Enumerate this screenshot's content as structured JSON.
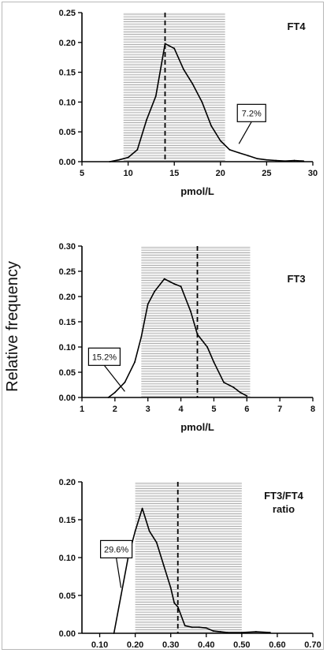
{
  "ylabel": "Relative frequency",
  "chart_data": [
    {
      "type": "line",
      "title": "FT4",
      "xlabel": "pmol/L",
      "xlim": [
        5,
        30
      ],
      "ylim": [
        0,
        0.25
      ],
      "xticks": [
        5,
        10,
        15,
        20,
        25,
        30
      ],
      "yticks": [
        0.0,
        0.05,
        0.1,
        0.15,
        0.2,
        0.25
      ],
      "xtick_labels": [
        "5",
        "10",
        "15",
        "20",
        "25",
        "30"
      ],
      "ytick_labels": [
        "0.00",
        "0.05",
        "0.10",
        "0.15",
        "0.20",
        "0.25"
      ],
      "reference_range": [
        9.5,
        20.5
      ],
      "median_line": 14,
      "annotation": {
        "text": "7.2%",
        "x": 22,
        "y": 0.03
      },
      "x": [
        8,
        9,
        10,
        11,
        12,
        13,
        14,
        15,
        16,
        17,
        18,
        19,
        20,
        21,
        22,
        23,
        24,
        25,
        26,
        27,
        28,
        29
      ],
      "y": [
        0,
        0.003,
        0.007,
        0.02,
        0.07,
        0.11,
        0.198,
        0.19,
        0.155,
        0.13,
        0.1,
        0.06,
        0.035,
        0.02,
        0.015,
        0.01,
        0.005,
        0.003,
        0.002,
        0.001,
        0.002,
        0.001
      ]
    },
    {
      "type": "line",
      "title": "FT3",
      "xlabel": "pmol/L",
      "xlim": [
        1,
        8
      ],
      "ylim": [
        0,
        0.3
      ],
      "xticks": [
        1,
        2,
        3,
        4,
        5,
        6,
        7,
        8
      ],
      "yticks": [
        0.0,
        0.05,
        0.1,
        0.15,
        0.2,
        0.25,
        0.3
      ],
      "xtick_labels": [
        "1",
        "2",
        "3",
        "4",
        "5",
        "6",
        "7",
        "8"
      ],
      "ytick_labels": [
        "0.00",
        "0.05",
        "0.10",
        "0.15",
        "0.20",
        "0.25",
        "0.30"
      ],
      "reference_range": [
        2.8,
        6.1
      ],
      "median_line": 4.5,
      "annotation": {
        "text": "15.2%",
        "x": 2.3,
        "y": 0.012
      },
      "x": [
        1.8,
        2.0,
        2.3,
        2.6,
        2.8,
        3.0,
        3.2,
        3.5,
        3.8,
        4.0,
        4.3,
        4.5,
        4.8,
        5.0,
        5.3,
        5.6,
        5.8,
        6.0
      ],
      "y": [
        0,
        0.01,
        0.03,
        0.07,
        0.12,
        0.185,
        0.21,
        0.235,
        0.225,
        0.22,
        0.17,
        0.125,
        0.1,
        0.07,
        0.03,
        0.02,
        0.01,
        0.003
      ]
    },
    {
      "type": "line",
      "title": "FT3/FT4",
      "subtitle": "ratio",
      "xlabel": "",
      "xlim": [
        0.05,
        0.7
      ],
      "ylim": [
        0,
        0.2
      ],
      "xticks": [
        0.1,
        0.2,
        0.3,
        0.4,
        0.5,
        0.6,
        0.7
      ],
      "yticks": [
        0.0,
        0.05,
        0.1,
        0.15,
        0.2
      ],
      "xtick_labels": [
        "0.10",
        "0.20",
        "0.30",
        "0.40",
        "0.50",
        "0.60",
        "0.70"
      ],
      "ytick_labels": [
        "0.00",
        "0.05",
        "0.10",
        "0.15",
        "0.20"
      ],
      "reference_range": [
        0.2,
        0.5
      ],
      "median_line": 0.32,
      "annotation": {
        "text": "29.6%",
        "x": 0.16,
        "y": 0.06
      },
      "x": [
        0.14,
        0.16,
        0.18,
        0.2,
        0.22,
        0.24,
        0.26,
        0.28,
        0.3,
        0.31,
        0.32,
        0.34,
        0.36,
        0.38,
        0.4,
        0.42,
        0.44,
        0.46,
        0.5,
        0.54,
        0.58
      ],
      "y": [
        0,
        0.05,
        0.1,
        0.135,
        0.165,
        0.135,
        0.12,
        0.09,
        0.06,
        0.04,
        0.035,
        0.01,
        0.008,
        0.008,
        0.007,
        0.003,
        0.002,
        0.001,
        0.001,
        0.002,
        0.001
      ]
    }
  ]
}
